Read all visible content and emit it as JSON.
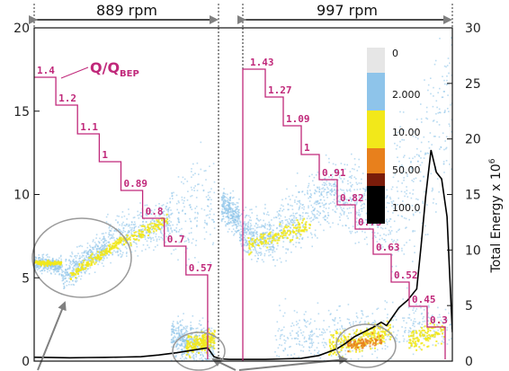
{
  "chart_data": {
    "type": "scatter",
    "axes": {
      "left": {
        "ylim": [
          0,
          20
        ],
        "ticks": [
          0,
          5,
          10,
          15,
          20
        ]
      },
      "right": {
        "label": "Total Energy x 10",
        "label_superscript": "6",
        "ylim": [
          0,
          30
        ],
        "ticks": [
          0,
          5,
          10,
          15,
          20,
          25,
          30
        ]
      }
    },
    "grid": false,
    "speed_regions": [
      {
        "label": "889 rpm"
      },
      {
        "label": "997 rpm"
      }
    ],
    "flow_ratio_label": {
      "main": "Q/Q",
      "subscript": "BEP"
    },
    "flow_ratio_steps": [
      {
        "regime": "889 rpm",
        "values": [
          "1.4",
          "1.2",
          "1.1",
          "1",
          "0.89",
          "0.8",
          "0.7",
          "0.57"
        ]
      },
      {
        "regime": "997 rpm",
        "values": [
          "1.43",
          "1.27",
          "1.09",
          "1",
          "0.91",
          "0.82",
          "0.73",
          "0.63",
          "0.52",
          "0.45",
          "0.3"
        ]
      }
    ],
    "colorbar": {
      "entries": [
        {
          "label": "0",
          "color": "#e6e6e6"
        },
        {
          "label": "2.000",
          "color": "#8ec4ea"
        },
        {
          "label": "10.00",
          "color": "#f2e81a"
        },
        {
          "label": "",
          "color": "#e8801c"
        },
        {
          "label": "50.00",
          "color": "#7a1c0a"
        },
        {
          "label": "100.0",
          "color": "#000000"
        }
      ]
    },
    "energy_series": {
      "name": "Total Energy",
      "color": "#000000",
      "points": [
        [
          0,
          0.35
        ],
        [
          2,
          0.33
        ],
        [
          4,
          0.3
        ],
        [
          6,
          0.32
        ],
        [
          8,
          0.34
        ],
        [
          10,
          0.36
        ],
        [
          12,
          0.4
        ],
        [
          14,
          0.55
        ],
        [
          16,
          0.75
        ],
        [
          18,
          1.0
        ],
        [
          19.5,
          1.2
        ],
        [
          20.2,
          0.4
        ],
        [
          21,
          0.2
        ],
        [
          22,
          0.15
        ],
        [
          24,
          0.15
        ],
        [
          26,
          0.15
        ],
        [
          28,
          0.2
        ],
        [
          30,
          0.25
        ],
        [
          32,
          0.5
        ],
        [
          33,
          0.8
        ],
        [
          34,
          1.1
        ],
        [
          35,
          1.6
        ],
        [
          36,
          2.2
        ],
        [
          37,
          2.6
        ],
        [
          38,
          3.0
        ],
        [
          39,
          3.5
        ],
        [
          39.6,
          3.2
        ],
        [
          40.3,
          4.0
        ],
        [
          41,
          4.8
        ],
        [
          42,
          5.5
        ],
        [
          43,
          6.5
        ],
        [
          43.5,
          10.5
        ],
        [
          44,
          14.8
        ],
        [
          44.6,
          19.0
        ],
        [
          45.2,
          17.0
        ],
        [
          45.8,
          16.4
        ],
        [
          46.4,
          13.0
        ],
        [
          47,
          2.6
        ]
      ]
    },
    "colors": {
      "flow_steps": "#c0287a",
      "scatter_low": "#8ec4ea",
      "scatter_mid": "#f2e81a",
      "scatter_high": "#e8801c",
      "annotation": "#808080"
    }
  }
}
